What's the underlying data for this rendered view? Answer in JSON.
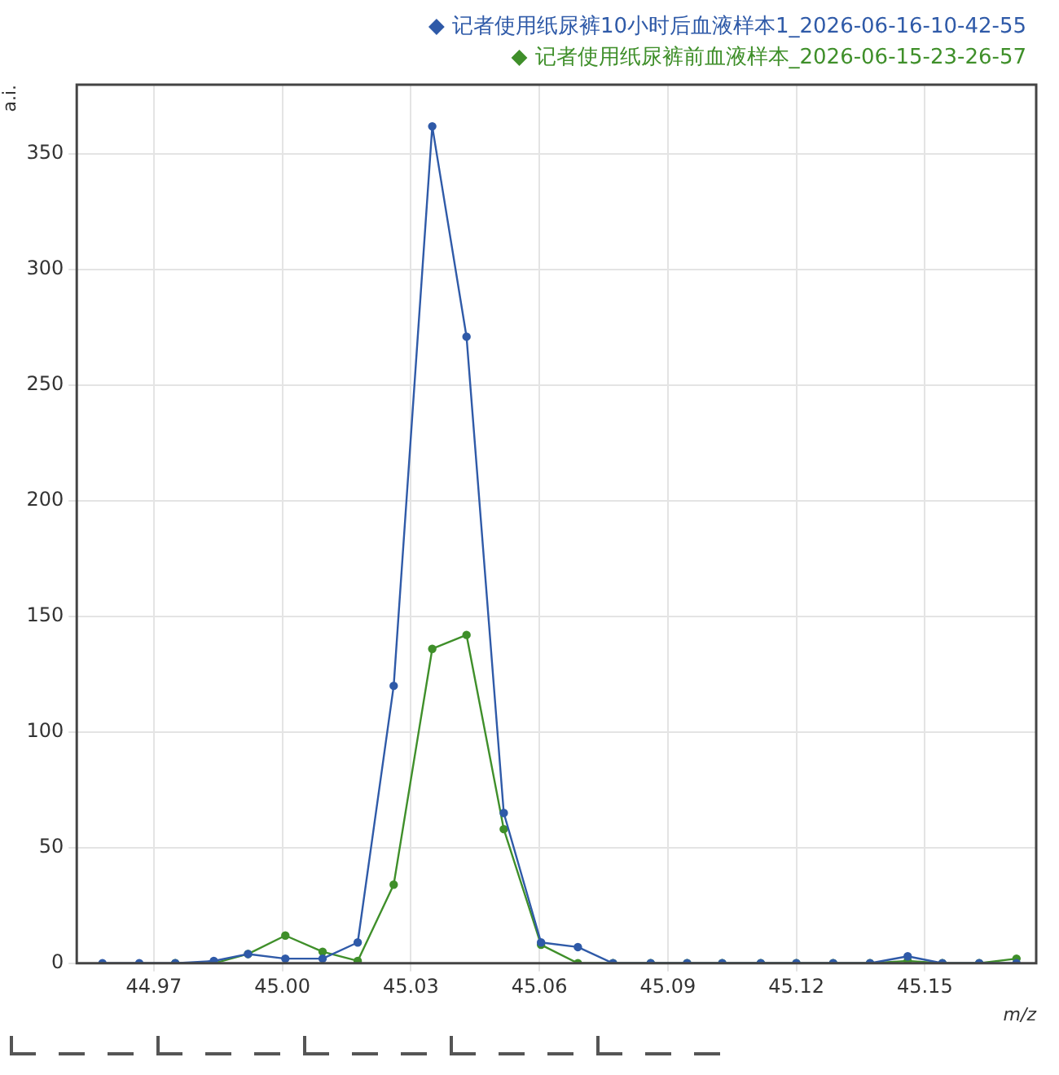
{
  "chart_data": {
    "type": "line",
    "xlabel": "m/z",
    "ylabel": "a.i.",
    "x": [
      44.958,
      44.9666,
      44.975,
      44.984,
      44.992,
      45.0007,
      45.0094,
      45.0176,
      45.026,
      45.035,
      45.043,
      45.0517,
      45.0604,
      45.069,
      45.0772,
      45.086,
      45.0945,
      45.1027,
      45.1117,
      45.12,
      45.1286,
      45.1372,
      45.146,
      45.1541,
      45.1627,
      45.1714
    ],
    "series": [
      {
        "name": "记者使用纸尿裤10小时后血液样本1_2026-06-16-10-42-55",
        "color": "#2f5aa8",
        "values": [
          0,
          0,
          0,
          1,
          4,
          2,
          2,
          9,
          120,
          362,
          271,
          65,
          9,
          7,
          0,
          0,
          0,
          0,
          0,
          0,
          0,
          0,
          3,
          0,
          0,
          0
        ]
      },
      {
        "name": "记者使用纸尿裤前血液样本_2026-06-15-23-26-57",
        "color": "#3f8f2a",
        "values": [
          null,
          null,
          0,
          0,
          4,
          12,
          5,
          1,
          34,
          136,
          142,
          58,
          8,
          0,
          0,
          0,
          0,
          0,
          0,
          0,
          0,
          0,
          1,
          0,
          0,
          2
        ]
      }
    ],
    "xlim": [
      44.952,
      45.176
    ],
    "ylim": [
      0,
      380
    ],
    "xticks": [
      {
        "value": 44.97,
        "label": "44.97"
      },
      {
        "value": 45.0,
        "label": "45.00"
      },
      {
        "value": 45.03,
        "label": "45.03"
      },
      {
        "value": 45.06,
        "label": "45.06"
      },
      {
        "value": 45.09,
        "label": "45.09"
      },
      {
        "value": 45.12,
        "label": "45.12"
      },
      {
        "value": 45.15,
        "label": "45.15"
      }
    ],
    "yticks": [
      0,
      50,
      100,
      150,
      200,
      250,
      300,
      350
    ],
    "grid": true,
    "legend": "top right",
    "marker": "circle",
    "line_style": "solid"
  }
}
